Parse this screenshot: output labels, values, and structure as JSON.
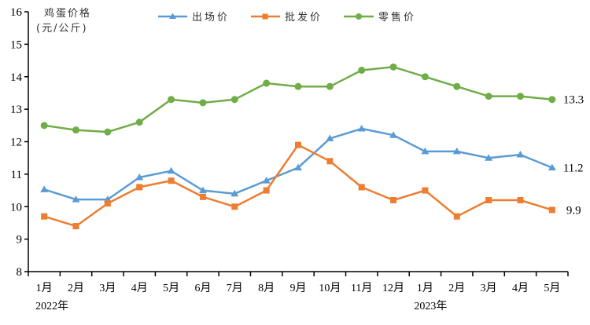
{
  "chart_data": {
    "type": "line",
    "title": "",
    "ylabel_line1": "鸡蛋价格",
    "ylabel_line2": "(元/公斤)",
    "xlabel": "",
    "ylim": [
      8,
      16
    ],
    "yticks": [
      8,
      9,
      10,
      11,
      12,
      13,
      14,
      15,
      16
    ],
    "grid": false,
    "legend_position": "top",
    "categories": [
      "1月",
      "2月",
      "3月",
      "4月",
      "5月",
      "6月",
      "7月",
      "8月",
      "9月",
      "10月",
      "11月",
      "12月",
      "1月",
      "2月",
      "3月",
      "4月",
      "5月"
    ],
    "year_labels": [
      {
        "label": "2022年",
        "index": 0
      },
      {
        "label": "2023年",
        "index": 12
      }
    ],
    "series": [
      {
        "name": "出场价",
        "color": "#5B9BD5",
        "marker": "triangle",
        "values": [
          10.53,
          10.22,
          10.22,
          10.9,
          11.1,
          10.5,
          10.4,
          10.8,
          11.2,
          12.1,
          12.4,
          12.2,
          11.7,
          11.7,
          11.5,
          11.6,
          11.2
        ],
        "end_label": "11.2"
      },
      {
        "name": "批发价",
        "color": "#ED7D31",
        "marker": "square",
        "values": [
          9.7,
          9.4,
          10.1,
          10.6,
          10.8,
          10.3,
          10.0,
          10.5,
          11.9,
          11.4,
          10.6,
          10.2,
          10.5,
          9.7,
          10.2,
          10.2,
          9.9
        ],
        "end_label": "9.9"
      },
      {
        "name": "零售价",
        "color": "#70AD47",
        "marker": "circle",
        "values": [
          12.5,
          12.36,
          12.3,
          12.6,
          13.3,
          13.2,
          13.3,
          13.8,
          13.7,
          13.7,
          14.2,
          14.3,
          14.0,
          13.7,
          13.4,
          13.4,
          13.3
        ],
        "end_label": "13.3"
      }
    ]
  }
}
